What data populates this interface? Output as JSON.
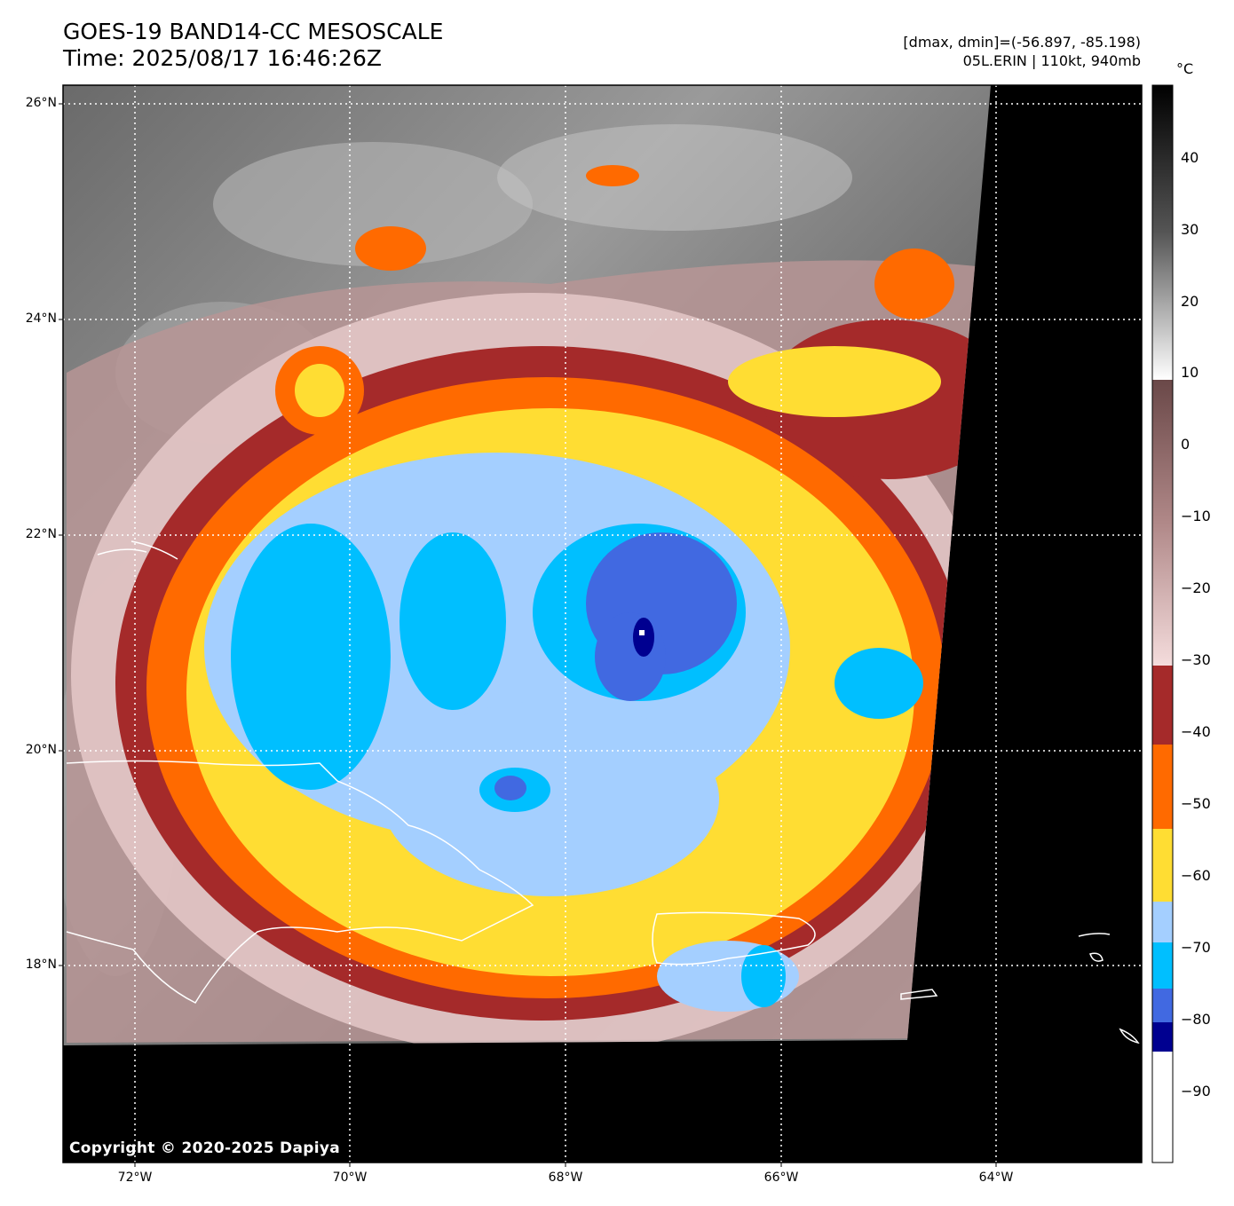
{
  "title": {
    "line1": "GOES-19 BAND14-CC MESOSCALE",
    "line2": "Time: 2025/08/17 16:46:26Z"
  },
  "info": {
    "line1": "[dmax, dmin]=(-56.897, -85.198)",
    "line2": "05L.ERIN | 110kt, 940mb"
  },
  "copyright": "Copyright © 2020-2025 Dapiya",
  "lat_labels": [
    "26°N",
    "24°N",
    "22°N",
    "20°N",
    "18°N"
  ],
  "lon_labels": [
    "72°W",
    "70°W",
    "68°W",
    "66°W",
    "64°W"
  ],
  "colorbar": {
    "unit": "°C",
    "ticks": [
      "40",
      "30",
      "20",
      "10",
      "0",
      "−10",
      "−20",
      "−30",
      "−40",
      "−50",
      "−60",
      "−70",
      "−80",
      "−90"
    ],
    "range": [
      -100,
      50
    ]
  },
  "colors": {
    "dark_red": "#a52a2a",
    "orange": "#ff6a00",
    "yellow": "#ffdd33",
    "light_blue": "#a4cfff",
    "cyan": "#00bfff",
    "royal_blue": "#4169e1",
    "navy": "#000090"
  }
}
